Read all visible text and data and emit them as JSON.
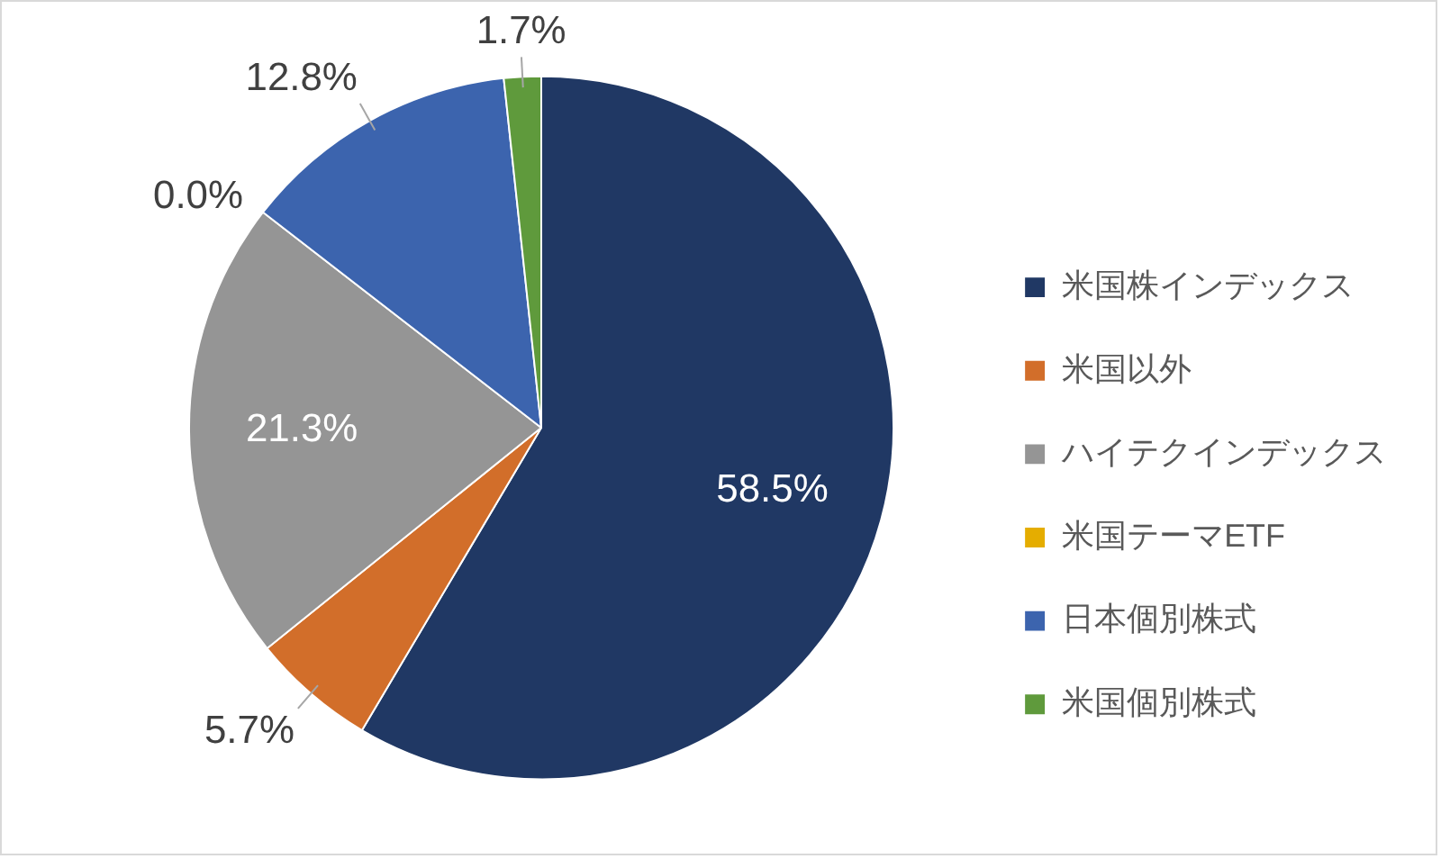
{
  "chart_data": {
    "type": "pie",
    "categories": [
      "米国株インデックス",
      "米国以外",
      "ハイテクインデックス",
      "米国テーマETF",
      "日本個別株式",
      "米国個別株式"
    ],
    "values": [
      58.5,
      5.7,
      21.3,
      0.0,
      12.8,
      1.7
    ],
    "colors": [
      "#203864",
      "#d26e2a",
      "#959595",
      "#e5ad00",
      "#3c64ae",
      "#5f9a3c"
    ],
    "value_labels": [
      "58.5%",
      "5.7%",
      "21.3%",
      "0.0%",
      "12.8%",
      "1.7%"
    ],
    "legend": "right"
  }
}
